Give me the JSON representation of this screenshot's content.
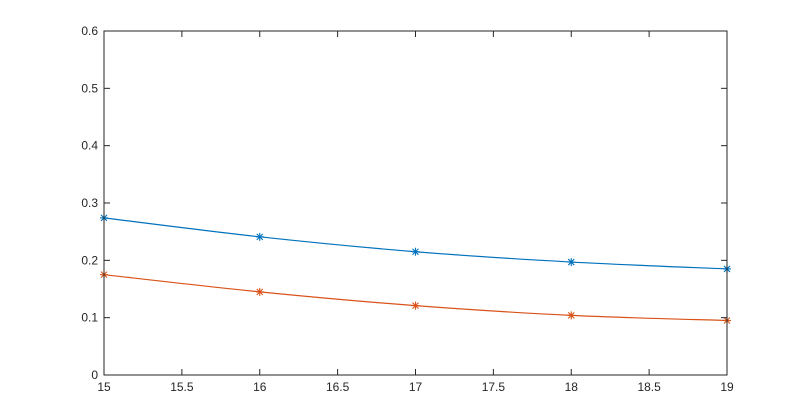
{
  "chart_data": {
    "type": "line",
    "title": "",
    "xlabel": "",
    "ylabel": "",
    "xlim": [
      15,
      19
    ],
    "ylim": [
      0,
      0.6
    ],
    "x_ticks": [
      "15",
      "15.5",
      "16",
      "16.5",
      "17",
      "17.5",
      "18",
      "18.5",
      "19"
    ],
    "y_ticks": [
      "0",
      "0.1",
      "0.2",
      "0.3",
      "0.4",
      "0.5",
      "0.6"
    ],
    "grid": false,
    "legend": "none",
    "marker": "asterisk",
    "x": [
      15,
      16,
      17,
      18,
      19
    ],
    "series": [
      {
        "color": "#0072BD",
        "values": [
          0.274,
          0.241,
          0.215,
          0.197,
          0.185
        ]
      },
      {
        "color": "#D95319",
        "values": [
          0.175,
          0.145,
          0.121,
          0.104,
          0.095
        ]
      }
    ]
  }
}
